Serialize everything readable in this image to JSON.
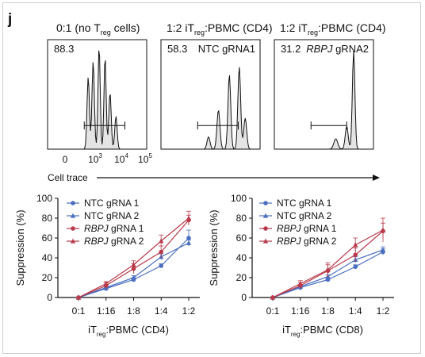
{
  "panel_label": "j",
  "flow": {
    "x_axis_label": "Cell trace",
    "x_ticks": [
      {
        "base": "0",
        "exp": ""
      },
      {
        "base": "10",
        "exp": "3"
      },
      {
        "base": "10",
        "exp": "4"
      },
      {
        "base": "10",
        "exp": "5"
      }
    ],
    "panels": [
      {
        "title_pre": "0:1 (no T",
        "title_sub": "reg",
        "title_post": " cells)",
        "percent": "88.3",
        "label_italic": "",
        "label_plain": ""
      },
      {
        "title_pre": "1:2 iT",
        "title_sub": "reg",
        "title_post": ":PBMC (CD4)",
        "percent": "58.3",
        "label_italic": "",
        "label_plain": "NTC gRNA1"
      },
      {
        "title_pre": "1:2 iT",
        "title_sub": "reg",
        "title_post": ":PBMC (CD4)",
        "percent": "31.2",
        "label_italic": "RBPJ",
        "label_plain": " gRNA2"
      }
    ]
  },
  "chart_data": [
    {
      "type": "line",
      "categories": [
        "0:1",
        "1:16",
        "1:8",
        "1:4",
        "1:2"
      ],
      "ylabel": "Suppression (%)",
      "xlabel_pre": "iT",
      "xlabel_sub": "reg",
      "xlabel_post": ":PBMC (CD4)",
      "ylim": [
        0,
        100
      ],
      "yticks": [
        "0",
        "20",
        "40",
        "60",
        "80",
        "100"
      ],
      "series": [
        {
          "name_italic": "",
          "name_plain": "NTC gRNA 1",
          "color": "#4b6fbf",
          "marker": "circle",
          "values": [
            0,
            9,
            18,
            32,
            60
          ],
          "errors": [
            0,
            1,
            2,
            2,
            8
          ]
        },
        {
          "name_italic": "",
          "name_plain": "NTC gRNA 2",
          "color": "#4b6fbf",
          "marker": "triangle",
          "values": [
            0,
            10,
            20,
            41,
            55
          ],
          "errors": [
            0,
            1,
            2,
            3,
            3
          ]
        },
        {
          "name_italic": "RBPJ",
          "name_plain": " gRNA 1",
          "color": "#b83a4b",
          "marker": "circle",
          "values": [
            0,
            12,
            29,
            46,
            78
          ],
          "errors": [
            0,
            3,
            5,
            6,
            5
          ]
        },
        {
          "name_italic": "RBPJ",
          "name_plain": " gRNA 2",
          "color": "#b83a4b",
          "marker": "triangle",
          "values": [
            0,
            14,
            33,
            57,
            80
          ],
          "errors": [
            0,
            2,
            4,
            6,
            7
          ]
        }
      ]
    },
    {
      "type": "line",
      "categories": [
        "0:1",
        "1:16",
        "1:8",
        "1:4",
        "1:2"
      ],
      "ylabel": "Suppression (%)",
      "xlabel_pre": "iT",
      "xlabel_sub": "reg",
      "xlabel_post": ":PBMC (CD8)",
      "ylim": [
        0,
        100
      ],
      "yticks": [
        "0",
        "20",
        "40",
        "60",
        "80",
        "100"
      ],
      "series": [
        {
          "name_italic": "",
          "name_plain": "NTC gRNA 1",
          "color": "#4b6fbf",
          "marker": "circle",
          "values": [
            0,
            10,
            18,
            31,
            46
          ],
          "errors": [
            0,
            1,
            2,
            2,
            3
          ]
        },
        {
          "name_italic": "",
          "name_plain": "NTC gRNA 2",
          "color": "#4b6fbf",
          "marker": "triangle",
          "values": [
            0,
            11,
            21,
            38,
            48
          ],
          "errors": [
            0,
            2,
            2,
            3,
            3
          ]
        },
        {
          "name_italic": "RBPJ",
          "name_plain": " gRNA 1",
          "color": "#b83a4b",
          "marker": "circle",
          "values": [
            0,
            12,
            27,
            43,
            67
          ],
          "errors": [
            0,
            3,
            6,
            7,
            8
          ]
        },
        {
          "name_italic": "RBPJ",
          "name_plain": " gRNA 2",
          "color": "#b83a4b",
          "marker": "triangle",
          "values": [
            0,
            14,
            28,
            53,
            68
          ],
          "errors": [
            0,
            3,
            7,
            7,
            12
          ]
        }
      ]
    }
  ]
}
